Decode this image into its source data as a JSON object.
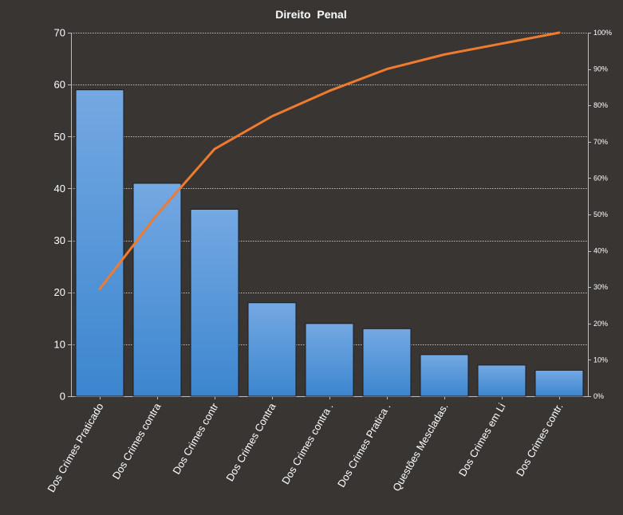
{
  "chart_data": {
    "type": "bar",
    "title": "Direito  Penal",
    "categories": [
      "Dos Crimes Praticado",
      "Dos Crimes contra",
      "Dos Crimes contr",
      "Dos Crimes Contra",
      "Dos Crimes contra .",
      "Dos Crimes Pratica .",
      "Questões Mescladas.",
      "Dos Crimes em Li",
      "Dos Crimes contr."
    ],
    "series": [
      {
        "type": "bar",
        "axis": "left",
        "values": [
          59,
          41,
          36,
          18,
          14,
          13,
          8,
          6,
          5
        ]
      },
      {
        "type": "line",
        "axis": "right",
        "values": [
          29.5,
          50,
          68,
          77,
          84,
          90,
          94,
          97,
          100
        ]
      }
    ],
    "ylim": [
      0,
      70
    ],
    "yticks": [
      "0",
      "10",
      "20",
      "30",
      "40",
      "50",
      "60",
      "70"
    ],
    "y2lim": [
      0,
      100
    ],
    "y2ticks": [
      "0%",
      "10%",
      "20%",
      "30%",
      "40%",
      "50%",
      "60%",
      "70%",
      "80%",
      "90%",
      "100%"
    ],
    "grid": true,
    "colors": {
      "background": "#383533",
      "bar_top": "#74a8e2",
      "bar_bottom": "#3c86cf",
      "bar_edge": "#1d1d1d",
      "line": "#ee7b30",
      "grid": "#bdbdbd",
      "text": "#ffffff"
    }
  }
}
